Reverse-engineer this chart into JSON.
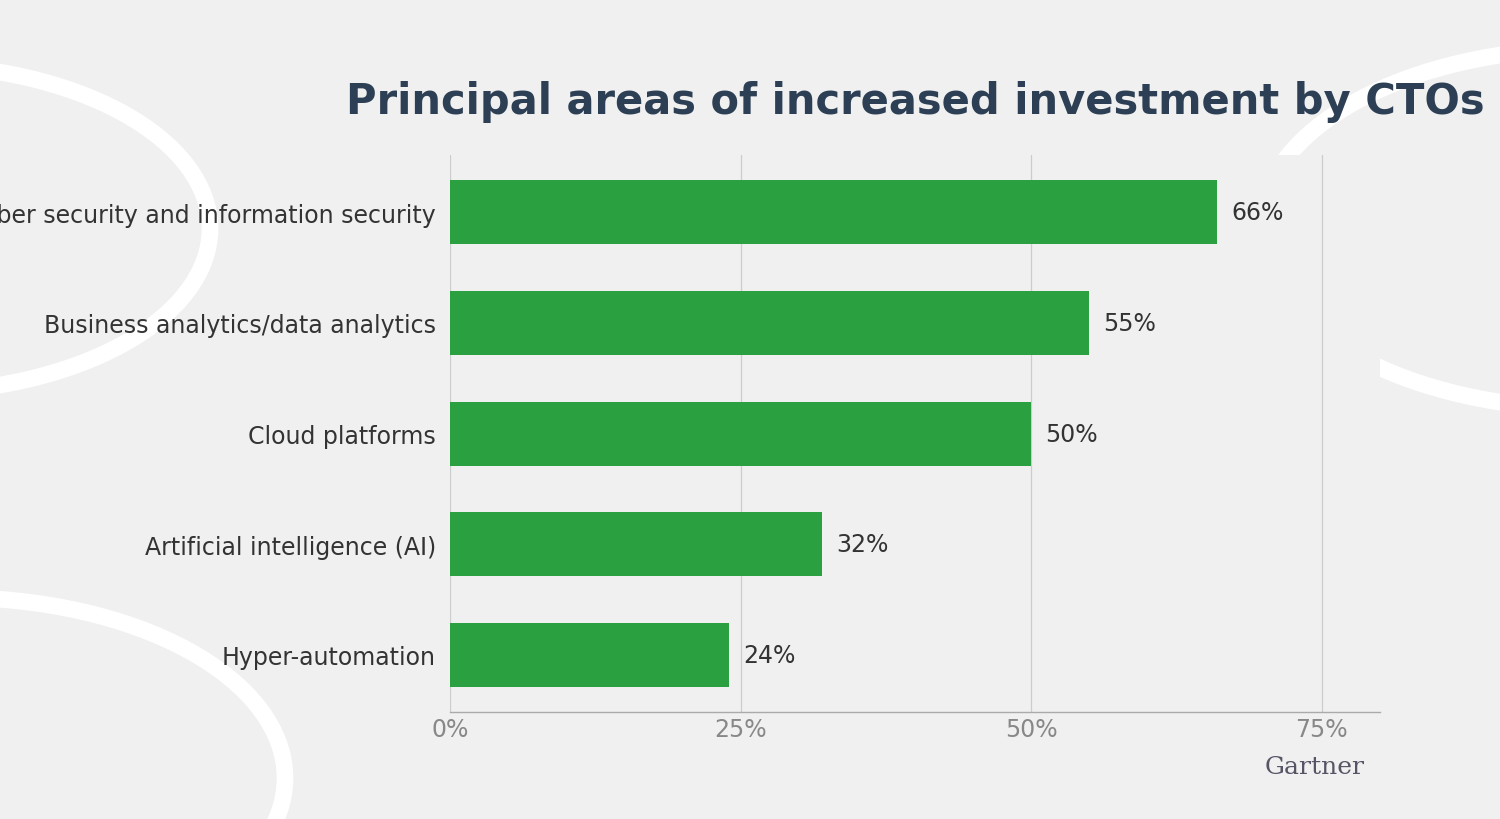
{
  "title": "Principal areas of increased investment by CTOs",
  "categories": [
    "Hyper-automation",
    "Artificial intelligence (AI)",
    "Cloud platforms",
    "Business analytics/data analytics",
    "Cyber security and information security"
  ],
  "values": [
    24,
    32,
    50,
    55,
    66
  ],
  "bar_color": "#2aA040",
  "background_color": "#f0f0f0",
  "text_color_title": "#2d3f54",
  "text_color_labels": "#333333",
  "text_color_source": "#555566",
  "xlim": [
    0,
    80
  ],
  "xticks": [
    0,
    25,
    50,
    75
  ],
  "xtick_labels": [
    "0%",
    "25%",
    "50%",
    "75%"
  ],
  "title_fontsize": 30,
  "label_fontsize": 17,
  "value_fontsize": 17,
  "source_text": "Gartner",
  "source_fontsize": 18
}
